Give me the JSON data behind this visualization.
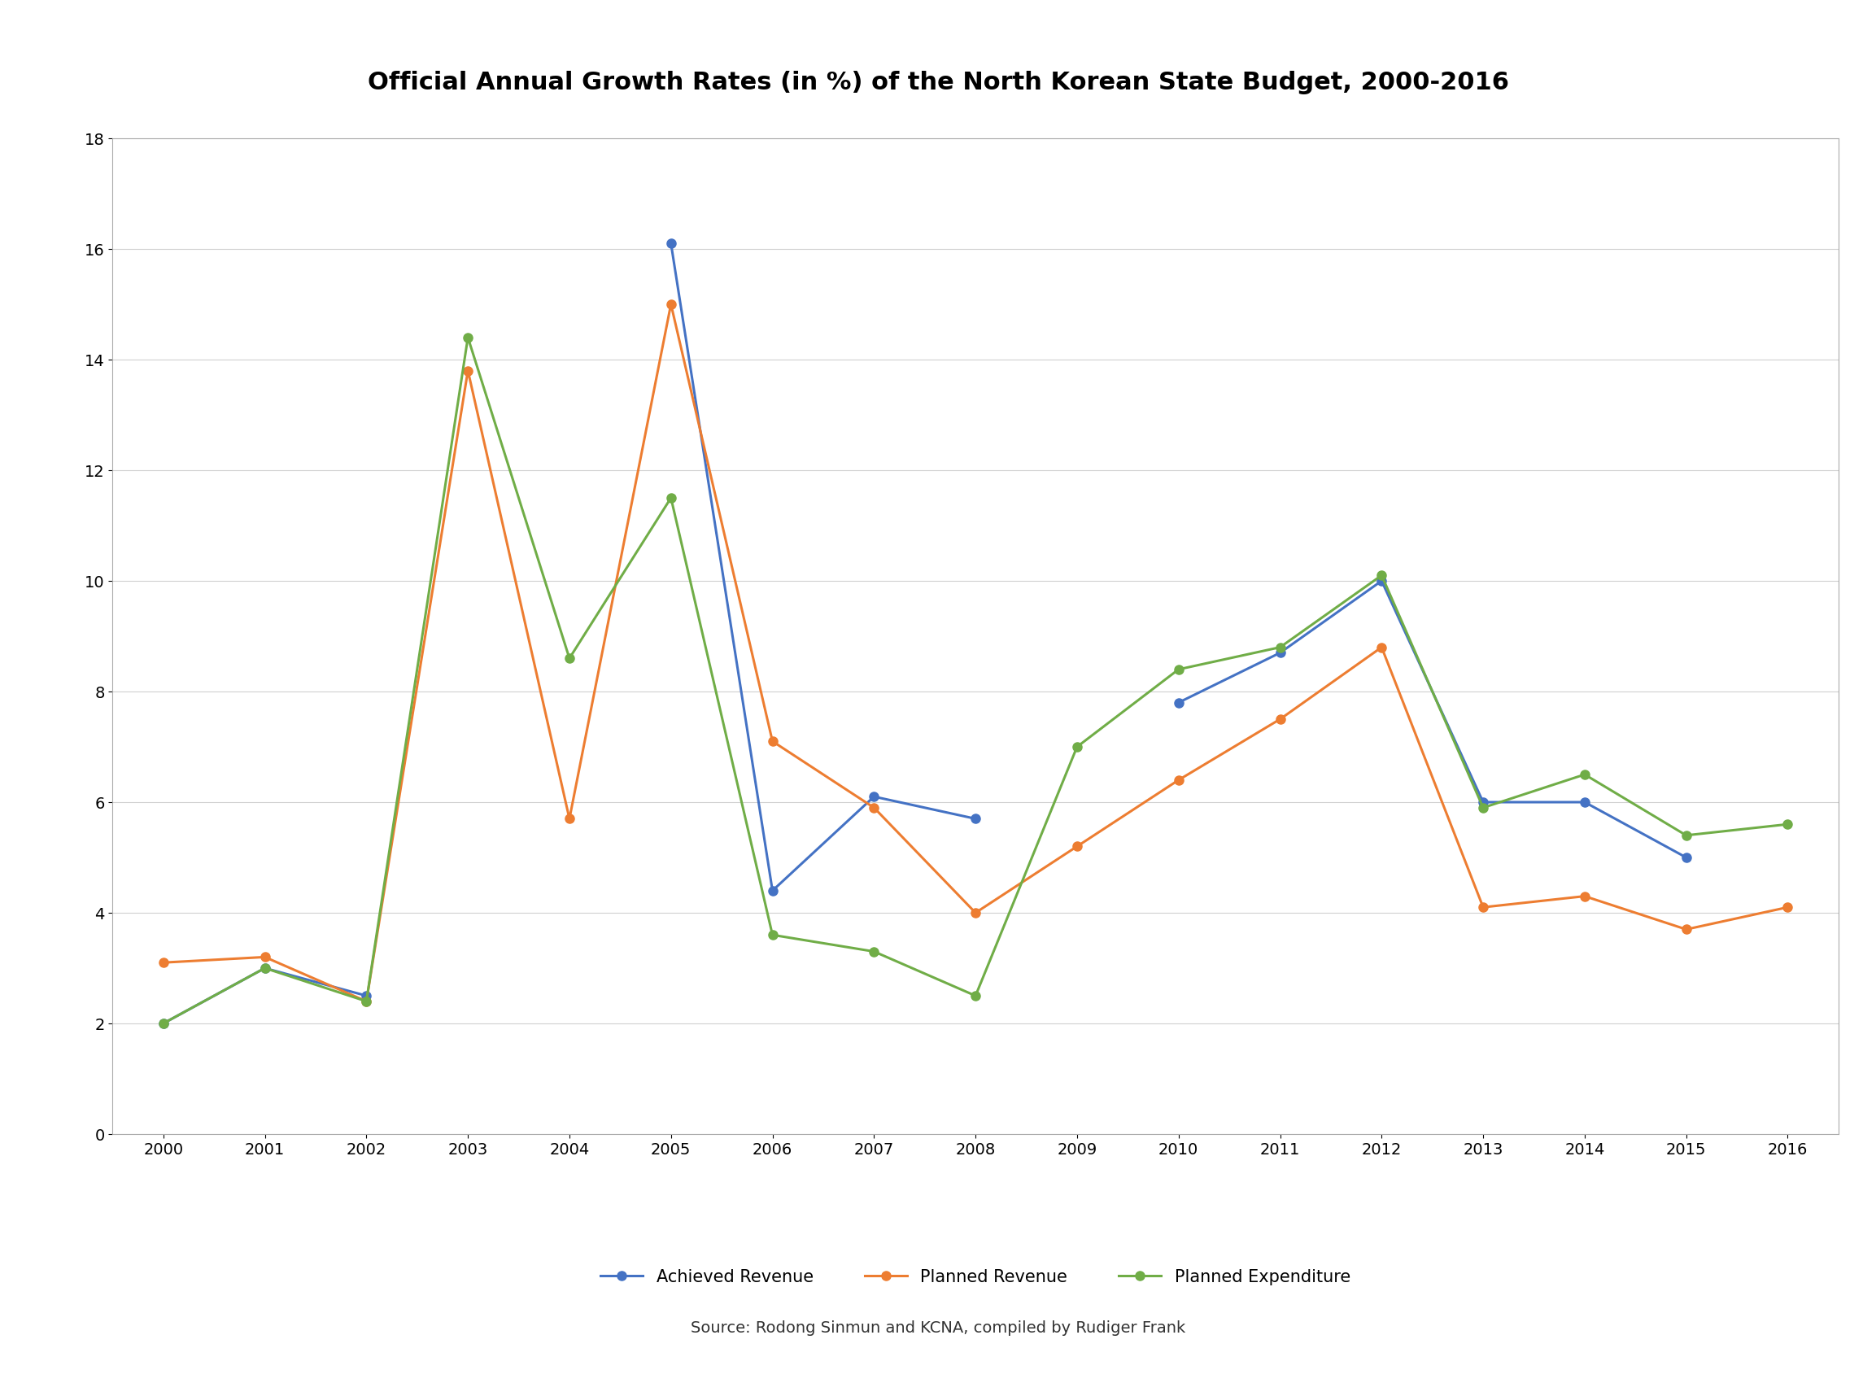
{
  "title": "Official Annual Growth Rates (in %) of the North Korean State Budget, 2000-2016",
  "source_text": "Source: Rodong Sinmun and KCNA, compiled by Rudiger Frank",
  "years": [
    2000,
    2001,
    2002,
    2003,
    2004,
    2005,
    2006,
    2007,
    2008,
    2009,
    2010,
    2011,
    2012,
    2013,
    2014,
    2015,
    2016
  ],
  "achieved_revenue": [
    2.0,
    3.0,
    2.5,
    null,
    null,
    16.1,
    4.4,
    6.1,
    5.7,
    null,
    7.8,
    8.7,
    10.0,
    6.0,
    6.0,
    5.0,
    null
  ],
  "planned_revenue": [
    3.1,
    3.2,
    2.4,
    13.8,
    5.7,
    15.0,
    7.1,
    5.9,
    4.0,
    5.2,
    6.4,
    7.5,
    8.8,
    4.1,
    4.3,
    3.7,
    4.1
  ],
  "planned_expenditure": [
    2.0,
    3.0,
    2.4,
    14.4,
    8.6,
    11.5,
    3.6,
    3.3,
    2.5,
    7.0,
    8.4,
    8.8,
    10.1,
    5.9,
    6.5,
    5.4,
    5.6
  ],
  "achieved_revenue_color": "#4472C4",
  "planned_revenue_color": "#ED7D31",
  "planned_expenditure_color": "#70AD47",
  "ylim": [
    0,
    18
  ],
  "yticks": [
    0,
    2,
    4,
    6,
    8,
    10,
    12,
    14,
    16,
    18
  ],
  "title_fontsize": 22,
  "axis_tick_fontsize": 14,
  "legend_fontsize": 15,
  "source_fontsize": 14,
  "linewidth": 2.2,
  "markersize": 8
}
